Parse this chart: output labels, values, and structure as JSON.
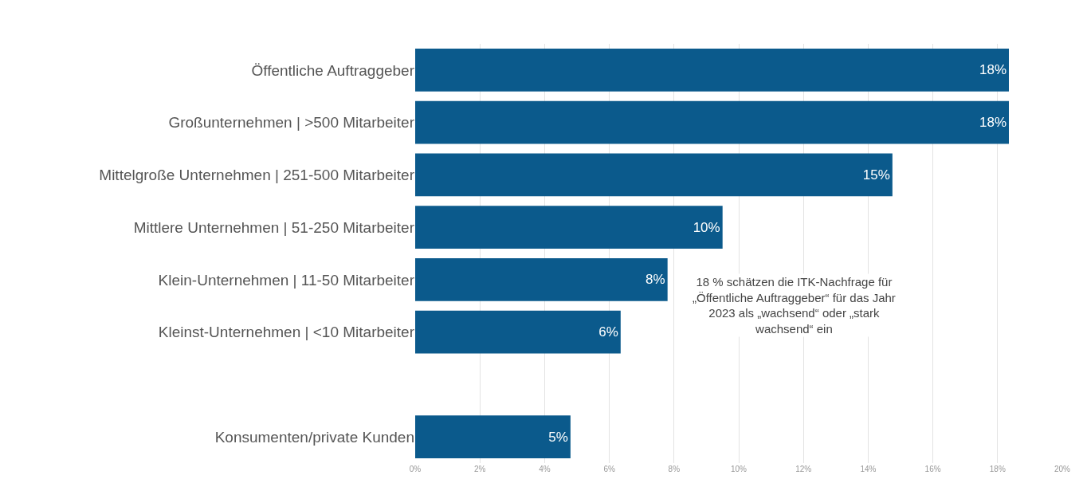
{
  "chart_data": {
    "type": "bar",
    "orientation": "horizontal",
    "categories": [
      "Öffentliche Auftraggeber",
      "Großunternehmen | >500 Mitarbeiter",
      "Mittelgroße Unternehmen | 251-500 Mitarbeiter",
      "Mittlere Unternehmen | 51-250 Mitarbeiter",
      "Klein-Unternehmen | 11-50 Mitarbeiter",
      "Kleinst-Unternehmen | <10 Mitarbeiter",
      null,
      "Konsumenten/private Kunden"
    ],
    "values": [
      18.35,
      18.35,
      14.75,
      9.5,
      7.8,
      6.35,
      null,
      4.8
    ],
    "value_labels": [
      "18%",
      "18%",
      "15%",
      "10%",
      "8%",
      "6%",
      null,
      "5%"
    ],
    "color": "#0b5a8c",
    "xlim": [
      0,
      20
    ],
    "xticks": [
      {
        "value": 0,
        "label": "0%"
      },
      {
        "value": 2,
        "label": "2%"
      },
      {
        "value": 4,
        "label": "4%"
      },
      {
        "value": 6,
        "label": "6%"
      },
      {
        "value": 8,
        "label": "8%"
      },
      {
        "value": 10,
        "label": "10%"
      },
      {
        "value": 12,
        "label": "12%"
      },
      {
        "value": 14,
        "label": "14%"
      },
      {
        "value": 16,
        "label": "16%"
      },
      {
        "value": 18,
        "label": "18%"
      },
      {
        "value": 20,
        "label": "20%"
      }
    ],
    "grid": "x",
    "annotations": [
      "18 % schätzen die ITK-Nachfrage für „Öffentliche Auftraggeber“ für das Jahr 2023 als „wachsend“ oder „stark wachsend“ ein"
    ]
  }
}
